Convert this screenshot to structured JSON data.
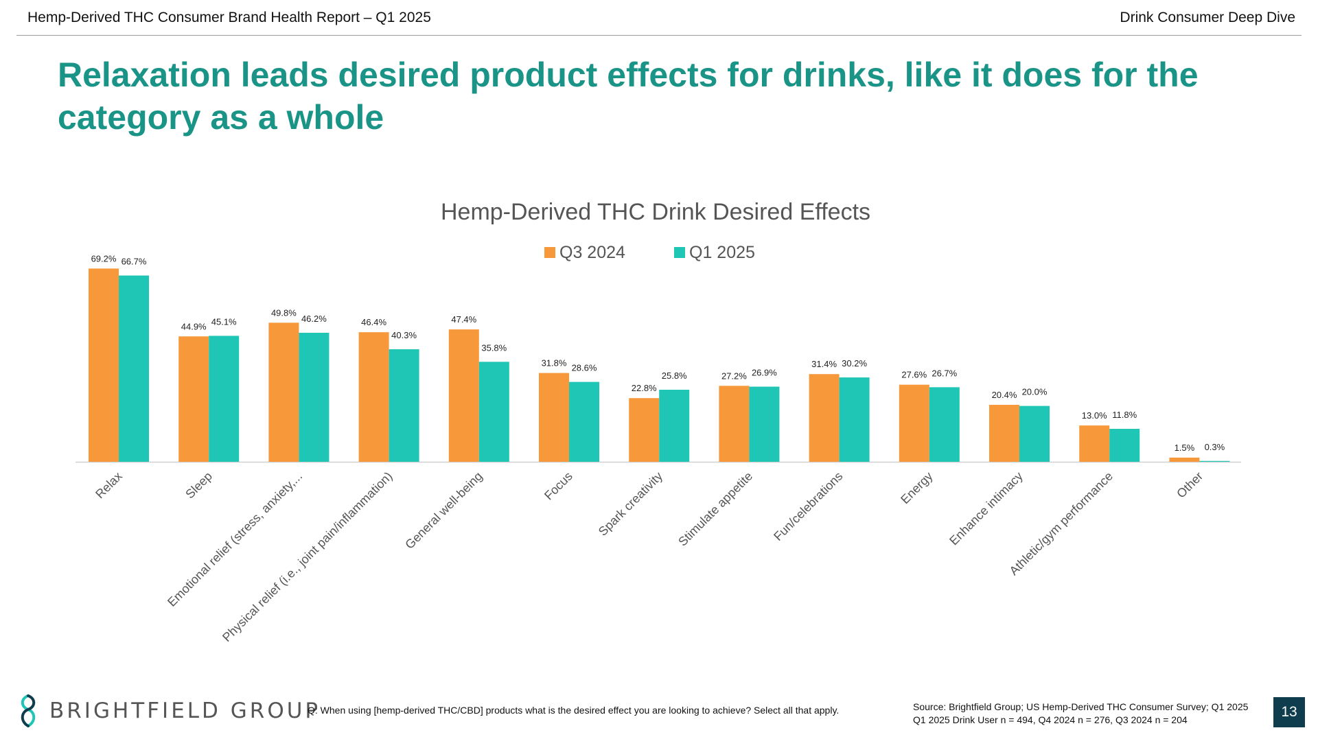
{
  "header": {
    "left": "Hemp-Derived THC Consumer Brand Health Report – Q1 2025",
    "right": "Drink Consumer Deep Dive"
  },
  "slide_title": "Relaxation leads desired product effects for drinks, like it does for the category as a whole",
  "footer": {
    "logo_text": "BRIGHTFIELD GROUP",
    "question": "Q: When using [hemp-derived THC/CBD] products what is the desired effect you are looking to achieve? Select all that apply.",
    "source_line1": "Source: Brightfield Group; US Hemp-Derived THC Consumer Survey; Q1 2025",
    "source_line2": "Q1 2025 Drink User n = 494, Q4 2024 n = 276, Q3 2024 n = 204",
    "page_number": "13"
  },
  "colors": {
    "title": "#1b9488",
    "q3_2024": "#f7993a",
    "q1_2025": "#1fc6b6",
    "page_badge": "#0f3d4d"
  },
  "chart_data": {
    "type": "bar",
    "title": "Hemp-Derived THC Drink Desired Effects",
    "xlabel": "",
    "ylabel": "",
    "ylim": [
      0,
      70
    ],
    "grid": false,
    "legend_position": "top-center",
    "categories": [
      "Relax",
      "Sleep",
      "Emotional relief (stress, anxiety,...",
      "Physical relief (i.e., joint pain/inflammation)",
      "General well-being",
      "Focus",
      "Spark creativity",
      "Stimulate appetite",
      "Fun/celebrations",
      "Energy",
      "Enhance intimacy",
      "Athletic/gym performance",
      "Other"
    ],
    "series": [
      {
        "name": "Q3 2024",
        "color": "#f7993a",
        "values": [
          69.2,
          44.9,
          49.8,
          46.4,
          47.4,
          31.8,
          22.8,
          27.2,
          31.4,
          27.6,
          20.4,
          13.0,
          1.5
        ],
        "labels": [
          "69.2%",
          "44.9%",
          "49.8%",
          "46.4%",
          "47.4%",
          "31.8%",
          "22.8%",
          "27.2%",
          "31.4%",
          "27.6%",
          "20.4%",
          "13.0%",
          "1.5%"
        ]
      },
      {
        "name": "Q1 2025",
        "color": "#1fc6b6",
        "values": [
          66.7,
          45.1,
          46.2,
          40.3,
          35.8,
          28.6,
          25.8,
          26.9,
          30.2,
          26.7,
          20.0,
          11.8,
          0.3
        ],
        "labels": [
          "66.7%",
          "45.1%",
          "46.2%",
          "40.3%",
          "35.8%",
          "28.6%",
          "25.8%",
          "26.9%",
          "30.2%",
          "26.7%",
          "20.0%",
          "11.8%",
          "0.3%"
        ]
      }
    ]
  }
}
